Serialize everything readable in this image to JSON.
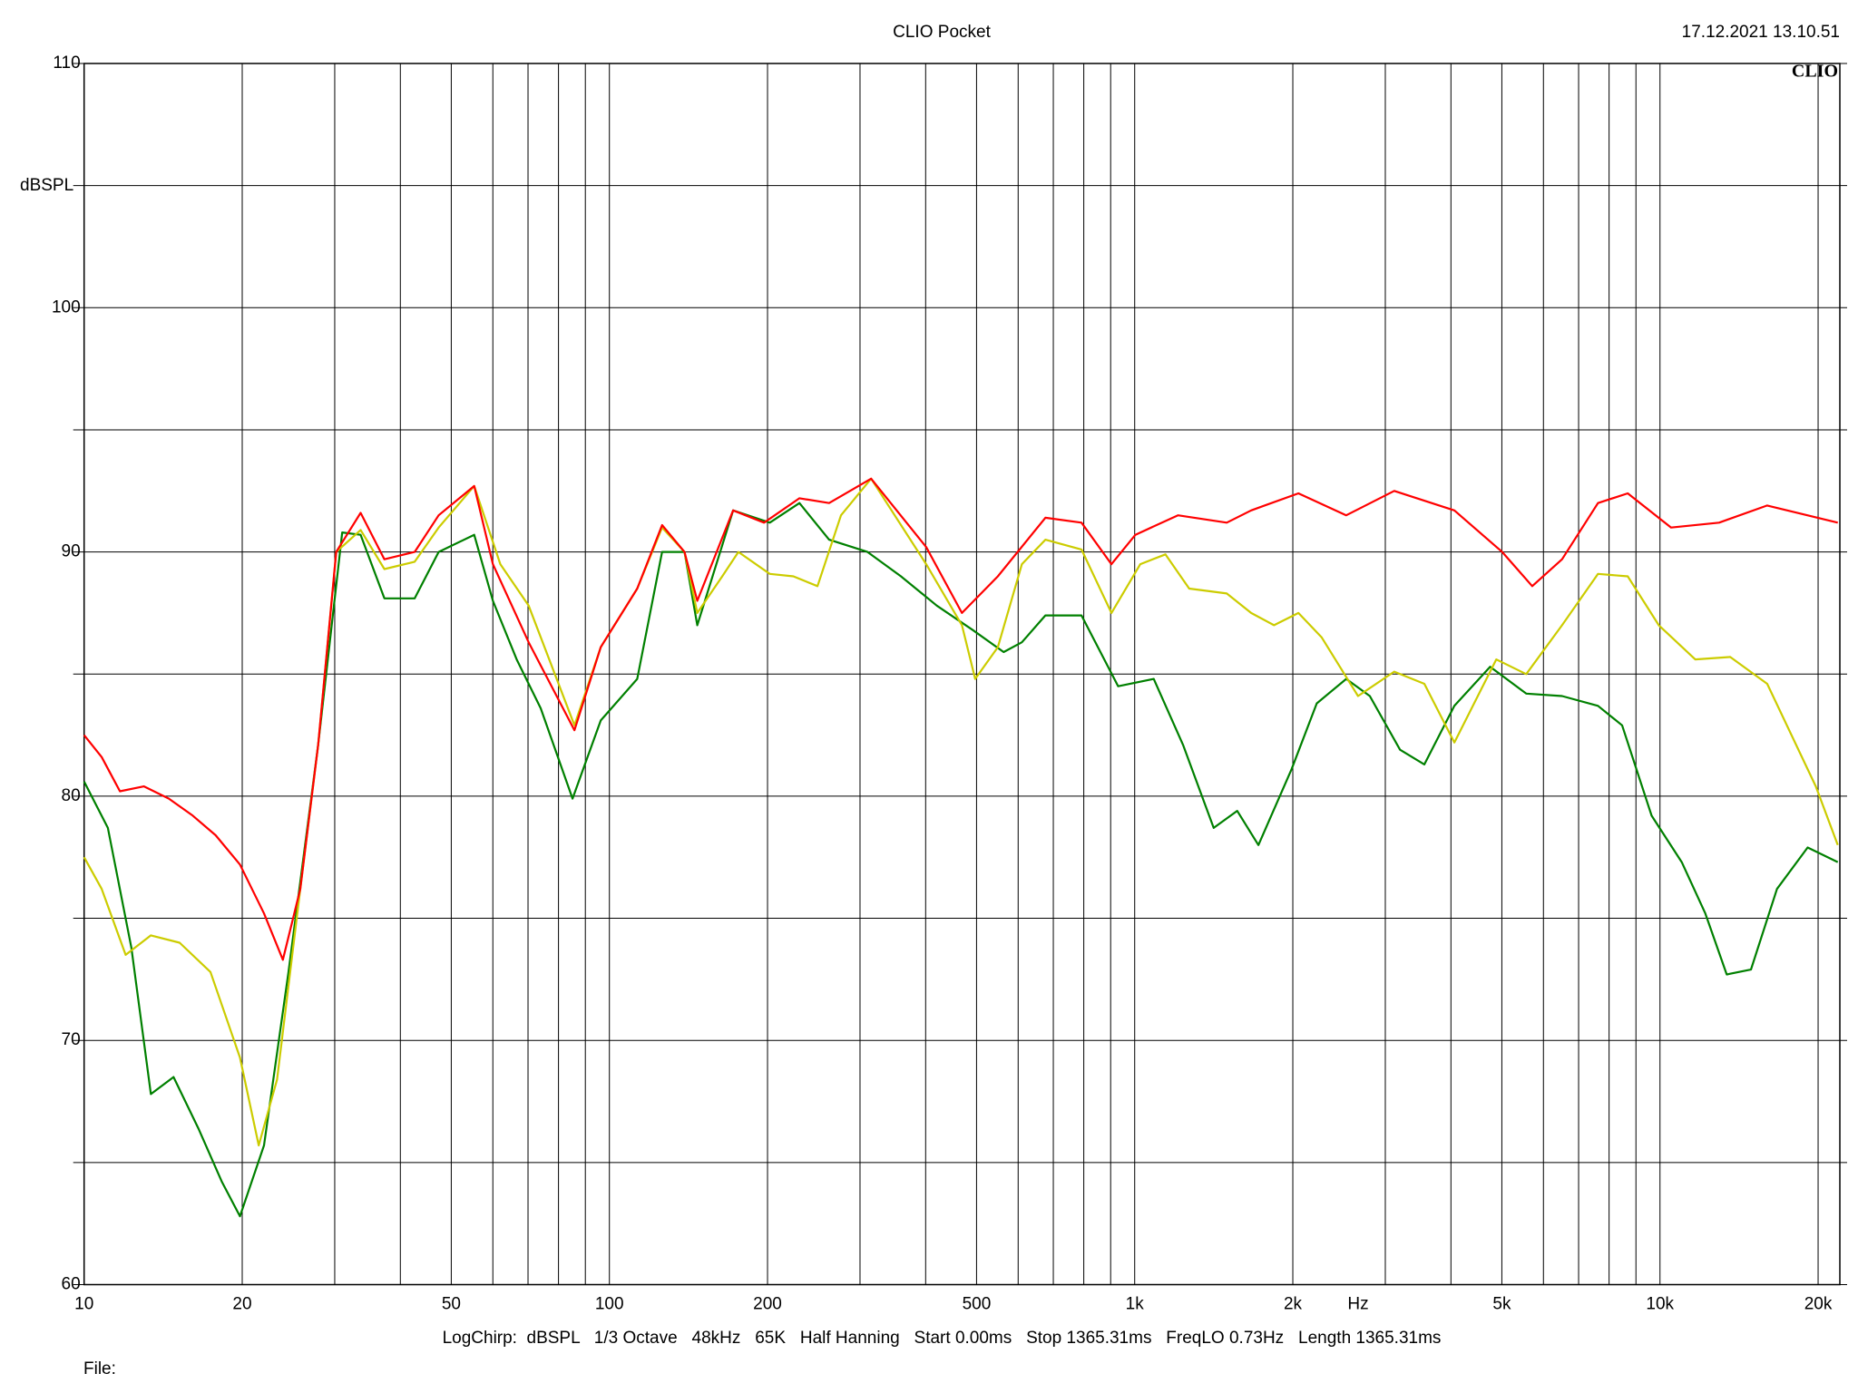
{
  "chart_data": {
    "type": "line",
    "title": "CLIO Pocket",
    "timestamp": "17.12.2021 13.10.51",
    "logo": "CLIO",
    "ylabel": "dBSPL",
    "xlabel": "Hz",
    "footer": "LogChirp:  dBSPL   1/3 Octave   48kHz   65K   Half Hanning   Start 0.00ms   Stop 1365.31ms   FreqLO 0.73Hz   Length 1365.31ms",
    "file_label": "File:",
    "xscale": "log",
    "grid": true,
    "xlim": [
      10,
      22000
    ],
    "ylim": [
      60,
      110
    ],
    "xticks": [
      10,
      20,
      50,
      100,
      200,
      500,
      {
        "value": 1000,
        "label": "1k"
      },
      {
        "value": 2000,
        "label": "2k"
      },
      {
        "value": 5000,
        "label": "5k"
      },
      {
        "value": 10000,
        "label": "10k"
      },
      {
        "value": 20000,
        "label": "20k"
      }
    ],
    "xminor": [
      30,
      40,
      60,
      70,
      80,
      90,
      300,
      400,
      600,
      700,
      800,
      900,
      3000,
      4000,
      6000,
      7000,
      8000,
      9000
    ],
    "yticks": [
      60,
      70,
      80,
      90,
      100,
      110
    ],
    "yminor": [
      65,
      75,
      85,
      95,
      105
    ],
    "series": [
      {
        "name": "red",
        "color": "#ff0000",
        "x": [
          10,
          10.8,
          11.7,
          13,
          14.5,
          16.1,
          17.8,
          19.8,
          22,
          23.9,
          25.8,
          27.9,
          30.2,
          33.6,
          37.3,
          42.6,
          47.3,
          55.3,
          60,
          70.2,
          85.8,
          96.3,
          113,
          126,
          139,
          147,
          172,
          197,
          230,
          262,
          315,
          401,
          469,
          549,
          676,
          792,
          903,
          1003,
          1209,
          1497,
          1666,
          2050,
          2528,
          3119,
          4060,
          5008,
          5711,
          6511,
          7619,
          8683,
          10500,
          12960,
          16000,
          21800
        ],
        "values": [
          82.5,
          81.6,
          80.2,
          80.4,
          79.9,
          79.2,
          78.4,
          77.2,
          75.2,
          73.3,
          76.2,
          82.1,
          90.0,
          91.6,
          89.7,
          90.0,
          91.5,
          92.7,
          89.5,
          86.3,
          82.7,
          86.1,
          88.5,
          91.1,
          90.0,
          88.0,
          91.7,
          91.2,
          92.2,
          92.0,
          93.0,
          90.2,
          87.5,
          89.0,
          91.4,
          91.2,
          89.5,
          90.7,
          91.5,
          91.2,
          91.7,
          92.4,
          91.5,
          92.5,
          91.7,
          90.0,
          88.6,
          89.7,
          92.0,
          92.4,
          91.0,
          91.2,
          91.9,
          91.2
        ]
      },
      {
        "name": "yellow",
        "color": "#cccc00",
        "x": [
          10,
          10.8,
          12,
          13.4,
          15.2,
          17.4,
          19.8,
          21.5,
          23.3,
          25.8,
          27.9,
          30.2,
          33.6,
          37.3,
          42.6,
          47.3,
          55.3,
          62,
          70.2,
          85.8,
          96.3,
          113,
          126,
          139,
          147,
          164,
          176,
          202,
          224,
          249,
          276,
          315,
          401,
          469,
          497,
          549,
          610,
          676,
          792,
          903,
          1025,
          1144,
          1270,
          1497,
          1666,
          1842,
          2050,
          2270,
          2662,
          3119,
          3560,
          4060,
          4880,
          5564,
          6511,
          7619,
          8683,
          9947,
          11670,
          13600,
          16000,
          19800,
          21800
        ],
        "values": [
          77.5,
          76.2,
          73.5,
          74.3,
          74.0,
          72.8,
          69.3,
          65.7,
          68.4,
          76.2,
          82.1,
          90.0,
          90.9,
          89.3,
          89.6,
          91.0,
          92.7,
          89.5,
          87.8,
          82.9,
          86.1,
          88.5,
          91.0,
          90.0,
          87.5,
          89.0,
          90.0,
          89.1,
          89.0,
          88.6,
          91.5,
          93.0,
          89.5,
          87.0,
          84.8,
          86.1,
          89.5,
          90.5,
          90.1,
          87.5,
          89.5,
          89.9,
          88.5,
          88.3,
          87.5,
          87.0,
          87.5,
          86.5,
          84.1,
          85.1,
          84.6,
          82.2,
          85.6,
          85.0,
          87.0,
          89.1,
          89.0,
          87.0,
          85.6,
          85.7,
          84.6,
          80.4,
          78.0
        ]
      },
      {
        "name": "green",
        "color": "#008000",
        "x": [
          10,
          11.1,
          12.3,
          13.4,
          14.8,
          16.5,
          18.3,
          19.8,
          22,
          24.5,
          27.9,
          31,
          33.6,
          37.3,
          42.6,
          47.3,
          55.3,
          60,
          66.6,
          74,
          85.1,
          96.3,
          113,
          126,
          139,
          147,
          172,
          202,
          230,
          262,
          310,
          359,
          420,
          492,
          563,
          610,
          676,
          792,
          930,
          1087,
          1236,
          1414,
          1567,
          1720,
          1989,
          2221,
          2528,
          2803,
          3200,
          3560,
          4060,
          4750,
          5564,
          6511,
          7619,
          8470,
          9640,
          11000,
          12200,
          13400,
          14900,
          16700,
          19100,
          21800
        ],
        "values": [
          80.6,
          78.7,
          73.8,
          67.8,
          68.5,
          66.4,
          64.2,
          62.8,
          65.7,
          72.8,
          82.1,
          90.8,
          90.7,
          88.1,
          88.1,
          90.0,
          90.7,
          88.0,
          85.6,
          83.6,
          79.9,
          83.1,
          84.8,
          90.0,
          90.0,
          87.0,
          91.7,
          91.2,
          92.0,
          90.5,
          90.0,
          89.0,
          87.8,
          86.8,
          85.9,
          86.3,
          87.4,
          87.4,
          84.5,
          84.8,
          82.1,
          78.7,
          79.4,
          78.0,
          81.1,
          83.8,
          84.8,
          84.1,
          81.9,
          81.3,
          83.7,
          85.3,
          84.2,
          84.1,
          83.7,
          82.9,
          79.2,
          77.3,
          75.2,
          72.7,
          72.9,
          76.2,
          77.9,
          77.3
        ]
      }
    ]
  }
}
